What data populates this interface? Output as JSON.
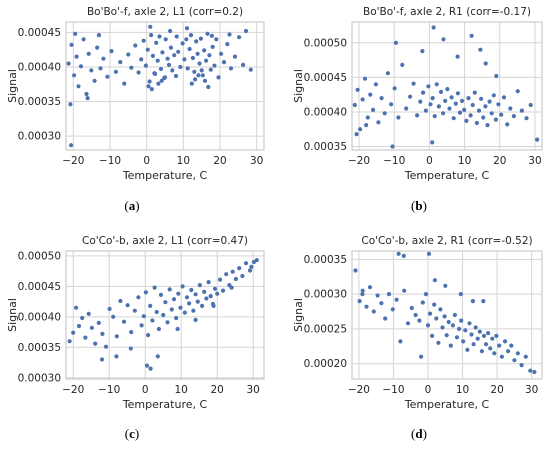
{
  "figure_captions": [
    {
      "open": "(",
      "letter": "a",
      "close": ")"
    },
    {
      "open": "(",
      "letter": "b",
      "close": ")"
    },
    {
      "open": "(",
      "letter": "c",
      "close": ")"
    },
    {
      "open": "(",
      "letter": "d",
      "close": ")"
    }
  ],
  "colors": {
    "points": "#4c72b0",
    "grid": "#d5d5d5",
    "frame": "#cccccc",
    "text": "#262626"
  },
  "chart_data": [
    {
      "type": "scatter",
      "title": "Bo'Bo'-f, axle 2, L1 (corr=0.2)",
      "xlabel": "Temperature, C",
      "ylabel": "Signal",
      "xlim": [
        -22,
        32
      ],
      "ylim": [
        0.00028,
        0.000465
      ],
      "xticks": [
        -20,
        -10,
        0,
        10,
        20,
        30
      ],
      "xtick_labels": [
        "−20",
        "−10",
        "0",
        "10",
        "20",
        "30"
      ],
      "yticks": [
        0.0003,
        0.00035,
        0.0004,
        0.00045
      ],
      "ytick_labels": [
        "0.00030",
        "0.00035",
        "0.00040",
        "0.00045"
      ],
      "grid": true,
      "series": [
        {
          "x": [
            -21.3,
            -20.5,
            -19.8,
            -19.1,
            -18.6,
            -17.9,
            -17.2,
            -16.4,
            -15.8,
            -15.1,
            -14.2,
            -13.5,
            -12.6,
            -11.8,
            -10.7,
            -9.6,
            -8.4,
            -7.2,
            -6.1,
            -5.0,
            -4.2,
            -3.1,
            -2.2,
            -1.5,
            -0.8,
            -0.2,
            0.3,
            0.8,
            1.2,
            1.7,
            2.1,
            2.6,
            3.0,
            3.5,
            3.9,
            4.3,
            4.8,
            5.2,
            5.7,
            6.1,
            6.6,
            7.0,
            7.5,
            8.0,
            8.6,
            9.2,
            9.8,
            10.3,
            10.8,
            11.2,
            11.7,
            12.1,
            12.6,
            13.0,
            13.5,
            13.9,
            14.4,
            14.8,
            15.3,
            15.7,
            16.2,
            16.6,
            17.1,
            17.5,
            18.0,
            18.5,
            19.0,
            19.6,
            20.3,
            21.1,
            22.0,
            23.0,
            24.1,
            25.2,
            26.3,
            27.1,
            28.4,
            -20.8,
            -16.1,
            0.5,
            1.4,
            2.3,
            3.2,
            4.1,
            5.0,
            12.3,
            13.2,
            14.1,
            15.0,
            15.9,
            16.8,
            -19.5,
            -13.0,
            1.0,
            6.4,
            8.2,
            11.0,
            17.8,
            22.6,
            -20.6
          ],
          "y": [
            0.000405,
            0.000432,
            0.000388,
            0.000415,
            0.000372,
            0.000401,
            0.00044,
            0.000361,
            0.000419,
            0.000395,
            0.00038,
            0.000428,
            0.000398,
            0.000412,
            0.000386,
            0.000423,
            0.000393,
            0.000407,
            0.000376,
            0.000418,
            0.000399,
            0.000431,
            0.000392,
            0.000411,
            0.000438,
            0.000402,
            0.000425,
            0.000379,
            0.000446,
            0.000416,
            0.000391,
            0.000435,
            0.000409,
            0.000444,
            0.000397,
            0.000421,
            0.000384,
            0.00044,
            0.000412,
            0.000403,
            0.000428,
            0.000395,
            0.000417,
            0.000387,
            0.000422,
            0.0004,
            0.000434,
            0.000411,
            0.00044,
            0.000398,
            0.000426,
            0.000446,
            0.000413,
            0.000393,
            0.000437,
            0.000419,
            0.000405,
            0.000441,
            0.000388,
            0.000424,
            0.000409,
            0.000448,
            0.000417,
            0.000396,
            0.000429,
            0.000402,
            0.00044,
            0.000385,
            0.000419,
            0.000407,
            0.000433,
            0.000398,
            0.000415,
            0.000443,
            0.000403,
            0.000452,
            0.000396,
            0.000346,
            0.000355,
            0.000372,
            0.000368,
            0.00039,
            0.000376,
            0.00038,
            0.000385,
            0.000376,
            0.000382,
            0.000388,
            0.000395,
            0.00038,
            0.000371,
            0.000448,
            0.000446,
            0.000458,
            0.000452,
            0.000444,
            0.000456,
            0.000445,
            0.000447,
            0.000287
          ]
        }
      ]
    },
    {
      "type": "scatter",
      "title": "Bo'Bo'-f, axle 2, R1 (corr=-0.17)",
      "xlabel": "Temperature, C",
      "ylabel": "Signal",
      "xlim": [
        -22,
        32
      ],
      "ylim": [
        0.000345,
        0.00053
      ],
      "xticks": [
        -20,
        -10,
        0,
        10,
        20,
        30
      ],
      "xtick_labels": [
        "−20",
        "−10",
        "0",
        "10",
        "20",
        "30"
      ],
      "yticks": [
        0.00035,
        0.0004,
        0.00045,
        0.0005
      ],
      "ytick_labels": [
        "0.00035",
        "0.00040",
        "0.00045",
        "0.00050"
      ],
      "grid": true,
      "series": [
        {
          "x": [
            -21.2,
            -20.4,
            -19.7,
            -19.0,
            -18.3,
            -17.5,
            -16.8,
            -16.0,
            -15.2,
            -14.5,
            -13.6,
            -12.7,
            -11.8,
            -10.9,
            -9.9,
            -8.8,
            -7.7,
            -6.6,
            -5.5,
            -4.5,
            -3.5,
            -2.6,
            -1.8,
            -1.0,
            -0.3,
            0.3,
            0.9,
            1.5,
            2.1,
            2.7,
            3.3,
            3.9,
            4.5,
            5.1,
            5.7,
            6.3,
            6.9,
            7.5,
            8.1,
            8.7,
            9.3,
            9.9,
            10.5,
            11.1,
            11.7,
            12.3,
            12.9,
            13.5,
            14.1,
            14.7,
            15.3,
            15.9,
            16.5,
            17.1,
            17.7,
            18.3,
            18.9,
            19.6,
            20.4,
            21.2,
            22.1,
            23.0,
            24.0,
            25.1,
            26.3,
            27.6,
            28.8,
            -20.7,
            -18.0,
            -9.5,
            -2.0,
            1.2,
            4.0,
            8.0,
            12.0,
            14.5,
            16.0,
            19.0,
            -10.5,
            0.8,
            30.6
          ],
          "y": [
            0.00041,
            0.000432,
            0.000375,
            0.000418,
            0.000448,
            0.000392,
            0.000425,
            0.000403,
            0.00044,
            0.000385,
            0.00042,
            0.000398,
            0.000456,
            0.000411,
            0.000434,
            0.000392,
            0.000468,
            0.000405,
            0.000422,
            0.000441,
            0.000395,
            0.000415,
            0.000428,
            0.000402,
            0.000437,
            0.000411,
            0.00042,
            0.000394,
            0.00044,
            0.000408,
            0.000429,
            0.000398,
            0.000416,
            0.000433,
            0.000405,
            0.000421,
            0.000391,
            0.000412,
            0.000427,
            0.000399,
            0.000416,
            0.000403,
            0.000387,
            0.00042,
            0.000395,
            0.00041,
            0.000428,
            0.000384,
            0.000402,
            0.000419,
            0.000392,
            0.000408,
            0.000381,
            0.000415,
            0.000398,
            0.000424,
            0.000389,
            0.000411,
            0.000396,
            0.000421,
            0.000382,
            0.000405,
            0.000394,
            0.00043,
            0.000402,
            0.000391,
            0.00041,
            0.000368,
            0.000381,
            0.0005,
            0.000488,
            0.000522,
            0.000505,
            0.00048,
            0.00051,
            0.00049,
            0.00047,
            0.000452,
            0.00035,
            0.000356,
            0.00036
          ]
        }
      ]
    },
    {
      "type": "scatter",
      "title": "Co'Co'-b, axle 2, L1 (corr=0.47)",
      "xlabel": "Temperature, C",
      "ylabel": "Signal",
      "xlim": [
        -22,
        33
      ],
      "ylim": [
        0.000298,
        0.000508
      ],
      "xticks": [
        -20,
        -10,
        0,
        10,
        20,
        30
      ],
      "xtick_labels": [
        "−20",
        "−10",
        "0",
        "10",
        "20",
        "30"
      ],
      "yticks": [
        0.0003,
        0.00035,
        0.0004,
        0.00045,
        0.0005
      ],
      "ytick_labels": [
        "0.00030",
        "0.00035",
        "0.00040",
        "0.00045",
        "0.00050"
      ],
      "grid": true,
      "series": [
        {
          "x": [
            -21.0,
            -20.0,
            -19.2,
            -18.4,
            -17.5,
            -16.6,
            -15.7,
            -14.8,
            -13.9,
            -12.9,
            -11.9,
            -10.9,
            -9.9,
            -8.9,
            -7.9,
            -6.9,
            -5.9,
            -4.9,
            -3.9,
            -2.9,
            -1.9,
            -1.0,
            -0.4,
            0.2,
            0.8,
            1.4,
            2.0,
            2.6,
            3.2,
            3.8,
            4.4,
            5.0,
            5.6,
            6.2,
            6.8,
            7.4,
            8.0,
            8.6,
            9.2,
            9.8,
            10.4,
            11.0,
            11.6,
            12.2,
            12.8,
            13.4,
            14.0,
            14.6,
            15.2,
            15.8,
            16.4,
            17.0,
            17.6,
            18.2,
            18.8,
            19.4,
            20.0,
            20.8,
            21.6,
            22.5,
            23.4,
            24.3,
            25.2,
            26.1,
            27.0,
            28.0,
            29.1,
            30.2,
            31.0,
            0.5,
            1.5,
            3.5,
            9.0,
            14.0,
            -12.0,
            -8.0,
            -4.0,
            19.0,
            24.0,
            29.5
          ],
          "y": [
            0.00036,
            0.000374,
            0.000415,
            0.000385,
            0.000398,
            0.000366,
            0.000405,
            0.000382,
            0.000356,
            0.00039,
            0.000372,
            0.000351,
            0.000413,
            0.0004,
            0.000368,
            0.000426,
            0.000392,
            0.000419,
            0.000375,
            0.00041,
            0.000432,
            0.000386,
            0.000401,
            0.00044,
            0.00037,
            0.000418,
            0.000394,
            0.000448,
            0.000408,
            0.00038,
            0.000436,
            0.000403,
            0.000424,
            0.000391,
            0.000445,
            0.000412,
            0.000429,
            0.000398,
            0.000438,
            0.000415,
            0.00045,
            0.000407,
            0.000432,
            0.000422,
            0.000444,
            0.00041,
            0.000437,
            0.000425,
            0.000452,
            0.000418,
            0.000441,
            0.00043,
            0.000457,
            0.000434,
            0.000421,
            0.000446,
            0.000438,
            0.000461,
            0.000443,
            0.00047,
            0.000452,
            0.000474,
            0.000462,
            0.00048,
            0.000467,
            0.000488,
            0.000476,
            0.00049,
            0.000493,
            0.00032,
            0.000315,
            0.000335,
            0.00038,
            0.000395,
            0.00033,
            0.000335,
            0.000348,
            0.000418,
            0.000448,
            0.000482
          ]
        }
      ]
    },
    {
      "type": "scatter",
      "title": "Co'Co'-b, axle 2, R1 (corr=-0.52)",
      "xlabel": "Temperature, C",
      "ylabel": "Signal",
      "xlim": [
        -22,
        33
      ],
      "ylim": [
        0.000178,
        0.000362
      ],
      "xticks": [
        -20,
        -10,
        0,
        10,
        20,
        30
      ],
      "xtick_labels": [
        "−20",
        "−10",
        "0",
        "10",
        "20",
        "30"
      ],
      "yticks": [
        0.0002,
        0.00025,
        0.0003,
        0.00035
      ],
      "ytick_labels": [
        "0.00020",
        "0.00025",
        "0.00030",
        "0.00035"
      ],
      "grid": true,
      "series": [
        {
          "x": [
            -21.0,
            -19.8,
            -18.9,
            -17.8,
            -16.8,
            -15.7,
            -14.6,
            -13.5,
            -12.4,
            -11.3,
            -10.2,
            -9.1,
            -8.0,
            -6.9,
            -5.8,
            -4.7,
            -3.6,
            -2.5,
            -1.5,
            -0.6,
            0.0,
            0.6,
            1.2,
            1.8,
            2.4,
            3.0,
            3.6,
            4.2,
            4.8,
            5.4,
            6.0,
            6.6,
            7.2,
            7.8,
            8.4,
            9.0,
            9.6,
            10.2,
            10.8,
            11.4,
            12.0,
            12.6,
            13.2,
            13.8,
            14.4,
            15.0,
            15.6,
            16.2,
            16.8,
            17.4,
            18.0,
            18.6,
            19.2,
            19.8,
            20.6,
            21.4,
            22.3,
            23.2,
            24.1,
            25.0,
            26.0,
            27.1,
            28.3,
            29.6,
            30.8,
            -8.5,
            -7.0,
            0.3,
            2.0,
            5.0,
            9.5,
            13.0,
            16.0,
            -2.0,
            -19.0
          ],
          "y": [
            0.000334,
            0.00029,
            0.000305,
            0.000282,
            0.00031,
            0.000275,
            0.000298,
            0.000287,
            0.000265,
            0.0003,
            0.000278,
            0.000292,
            0.000232,
            0.000305,
            0.000258,
            0.00028,
            0.00027,
            0.000262,
            0.000288,
            0.0003,
            0.000255,
            0.000272,
            0.00024,
            0.000285,
            0.000265,
            0.00023,
            0.000278,
            0.000252,
            0.000268,
            0.000241,
            0.00026,
            0.000226,
            0.000255,
            0.00027,
            0.000238,
            0.00025,
            0.000262,
            0.000232,
            0.000248,
            0.00022,
            0.000258,
            0.000242,
            0.000228,
            0.000252,
            0.000236,
            0.000246,
            0.000218,
            0.00024,
            0.000228,
            0.000244,
            0.000222,
            0.000236,
            0.000215,
            0.00024,
            0.000226,
            0.00021,
            0.000232,
            0.000218,
            0.000226,
            0.000205,
            0.000215,
            0.000198,
            0.00021,
            0.00019,
            0.000188,
            0.000358,
            0.000355,
            0.000358,
            0.00032,
            0.000312,
            0.0003,
            0.00029,
            0.00029,
            0.00021,
            0.0003
          ]
        }
      ]
    }
  ]
}
